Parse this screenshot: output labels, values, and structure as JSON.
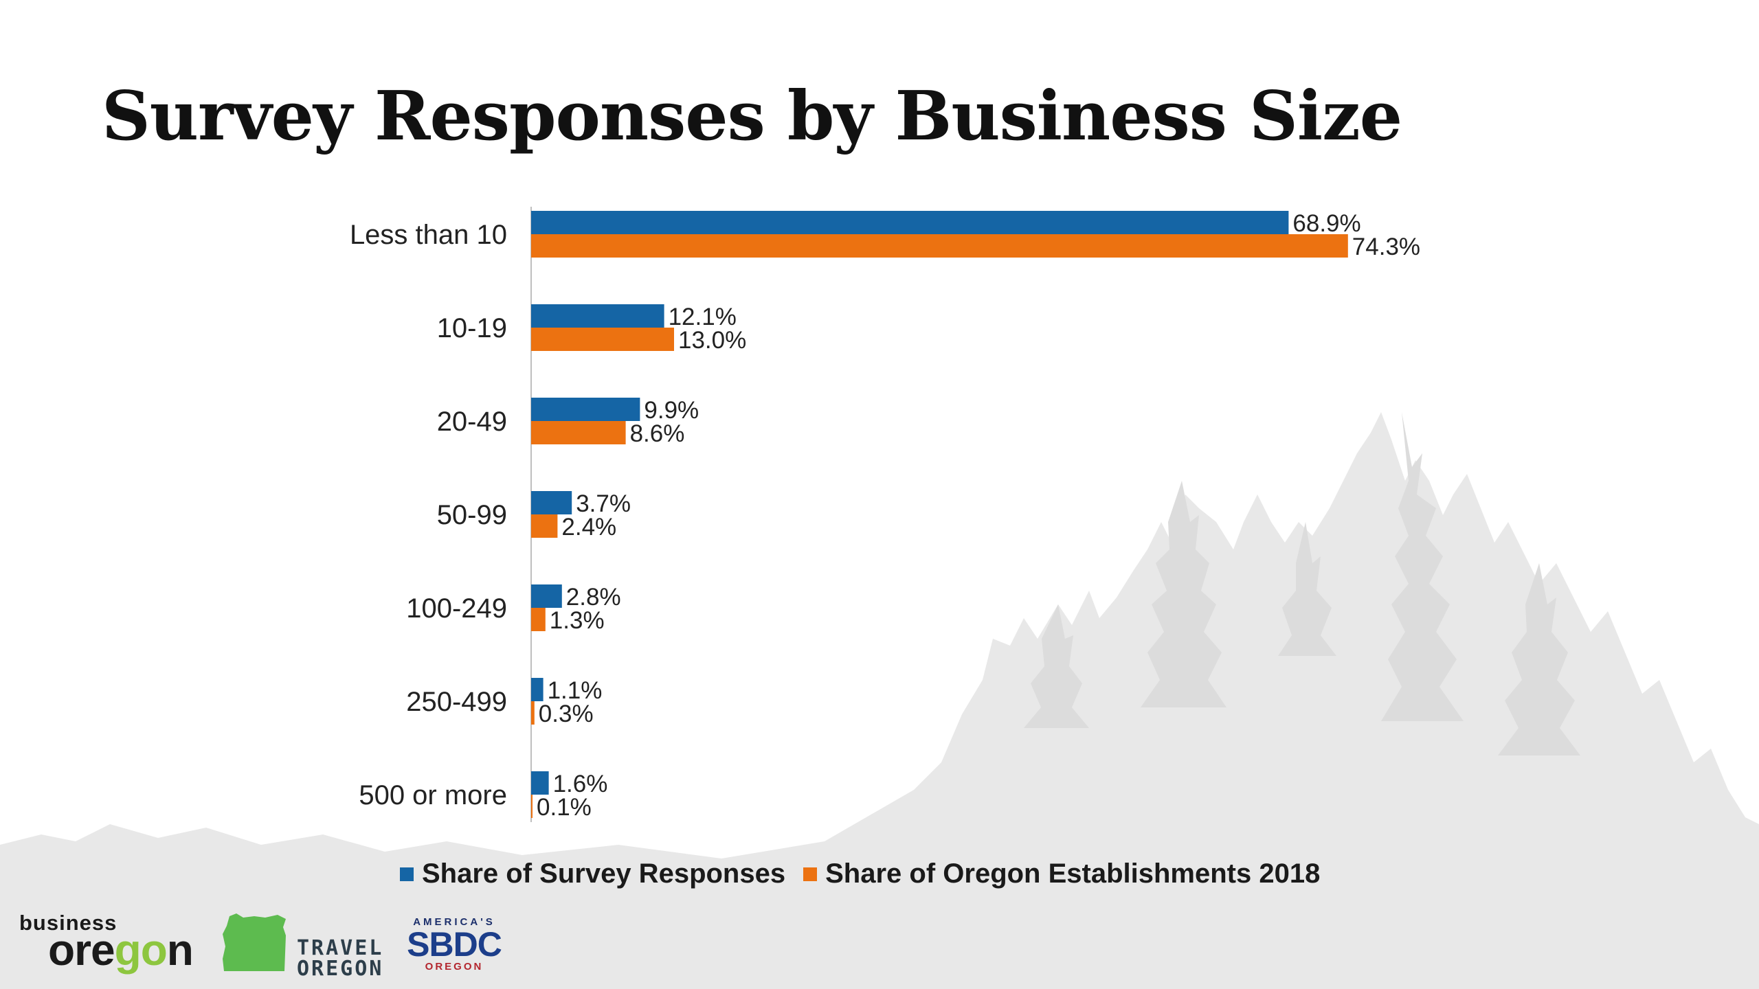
{
  "slide": {
    "title": "Survey Responses by Business Size"
  },
  "colors": {
    "series_1": "#1565a5",
    "series_2": "#ec7211",
    "forest_fill": "#e6e6e6",
    "text": "#222222"
  },
  "chart_data": {
    "type": "bar",
    "orientation": "horizontal",
    "title": "Survey Responses by Business Size",
    "xlabel": "",
    "ylabel": "",
    "xlim": [
      0,
      100
    ],
    "grid": false,
    "legend_position": "bottom",
    "categories": [
      "Less than 10",
      "10-19",
      "20-49",
      "50-99",
      "100-249",
      "250-499",
      "500 or more"
    ],
    "series": [
      {
        "name": "Share of Survey Responses",
        "values": [
          68.9,
          12.1,
          9.9,
          3.7,
          2.8,
          1.1,
          1.6
        ],
        "labels": [
          "68.9%",
          "12.1%",
          "9.9%",
          "3.7%",
          "2.8%",
          "1.1%",
          "1.6%"
        ]
      },
      {
        "name": "Share of Oregon Establishments 2018",
        "values": [
          74.3,
          13.0,
          8.6,
          2.4,
          1.3,
          0.3,
          0.1
        ],
        "labels": [
          "74.3%",
          "13.0%",
          "8.6%",
          "2.4%",
          "1.3%",
          "0.3%",
          "0.1%"
        ]
      }
    ]
  },
  "logos": {
    "business_oregon": {
      "small": "business",
      "big_prefix": "ore",
      "big_accent": "go",
      "big_suffix": "n"
    },
    "travel_oregon": {
      "line1": "TRAVEL",
      "line2": "OREGON",
      "icon": "oregon-state-shape-icon"
    },
    "sbdc": {
      "arc": "AMERICA'S",
      "main": "SBDC",
      "state": "OREGON"
    }
  }
}
